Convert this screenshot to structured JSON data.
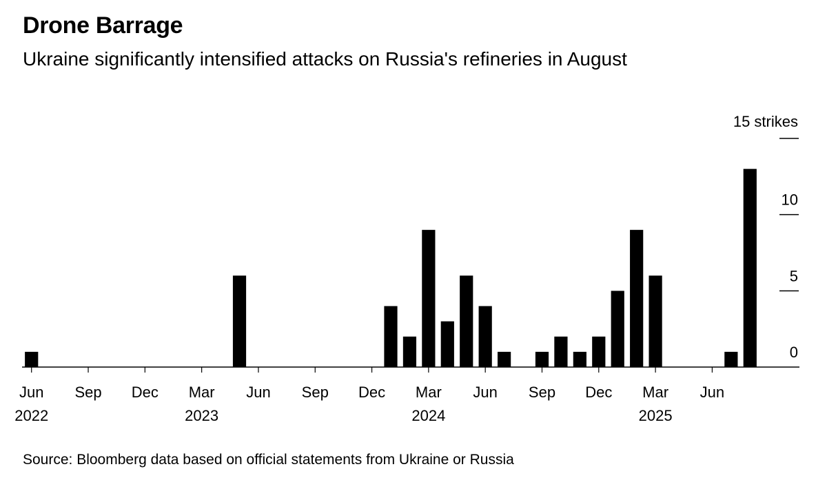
{
  "header": {
    "title": "Drone Barrage",
    "subtitle": "Ukraine significantly intensified attacks on Russia's refineries in August"
  },
  "footer": {
    "source": "Source: Bloomberg data based on official statements from Ukraine or Russia"
  },
  "chart_data": {
    "type": "bar",
    "title": "Drone Barrage",
    "subtitle": "Ukraine significantly intensified attacks on Russia's refineries in August",
    "unit_label": "15 strikes",
    "bar_color": "#000000",
    "y_axis_position": "right",
    "ylim": [
      0,
      15
    ],
    "yticks": [
      {
        "value": 0,
        "label": "0"
      },
      {
        "value": 5,
        "label": "5"
      },
      {
        "value": 10,
        "label": "10"
      },
      {
        "value": 15,
        "label": ""
      }
    ],
    "categories": [
      "2022-06",
      "2022-07",
      "2022-08",
      "2022-09",
      "2022-10",
      "2022-11",
      "2022-12",
      "2023-01",
      "2023-02",
      "2023-03",
      "2023-04",
      "2023-05",
      "2023-06",
      "2023-07",
      "2023-08",
      "2023-09",
      "2023-10",
      "2023-11",
      "2023-12",
      "2024-01",
      "2024-02",
      "2024-03",
      "2024-04",
      "2024-05",
      "2024-06",
      "2024-07",
      "2024-08",
      "2024-09",
      "2024-10",
      "2024-11",
      "2024-12",
      "2025-01",
      "2025-02",
      "2025-03",
      "2025-04",
      "2025-05",
      "2025-06",
      "2025-07",
      "2025-08"
    ],
    "values": [
      1,
      0,
      0,
      0,
      0,
      0,
      0,
      0,
      0,
      0,
      0,
      6,
      0,
      0,
      0,
      0,
      0,
      0,
      0,
      4,
      2,
      9,
      3,
      6,
      4,
      1,
      0,
      1,
      2,
      1,
      2,
      5,
      9,
      6,
      0,
      0,
      0,
      1,
      13
    ],
    "x_tick_labels": [
      {
        "category": "2022-06",
        "month": "Jun",
        "year": "2022"
      },
      {
        "category": "2022-09",
        "month": "Sep",
        "year": ""
      },
      {
        "category": "2022-12",
        "month": "Dec",
        "year": ""
      },
      {
        "category": "2023-03",
        "month": "Mar",
        "year": "2023"
      },
      {
        "category": "2023-06",
        "month": "Jun",
        "year": ""
      },
      {
        "category": "2023-09",
        "month": "Sep",
        "year": ""
      },
      {
        "category": "2023-12",
        "month": "Dec",
        "year": ""
      },
      {
        "category": "2024-03",
        "month": "Mar",
        "year": "2024"
      },
      {
        "category": "2024-06",
        "month": "Jun",
        "year": ""
      },
      {
        "category": "2024-09",
        "month": "Sep",
        "year": ""
      },
      {
        "category": "2024-12",
        "month": "Dec",
        "year": ""
      },
      {
        "category": "2025-03",
        "month": "Mar",
        "year": "2025"
      },
      {
        "category": "2025-06",
        "month": "Jun",
        "year": ""
      }
    ]
  }
}
